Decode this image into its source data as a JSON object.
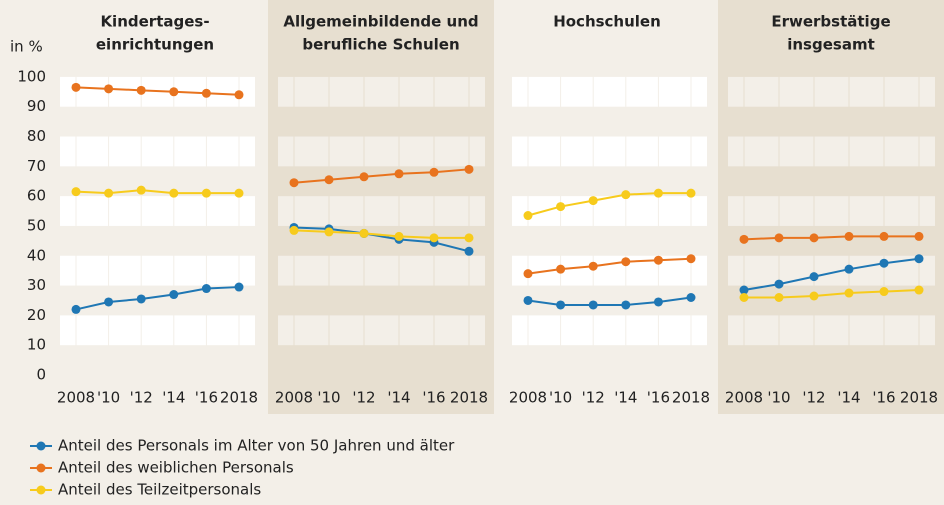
{
  "chart_data": [
    {
      "type": "line",
      "title": [
        "Kindertages-",
        "einrichtungen"
      ],
      "ylabel": "in %",
      "shaded": false,
      "categories": [
        "2008",
        "'10",
        "'12",
        "'14",
        "'16",
        "2018"
      ],
      "ylim": [
        0,
        105
      ],
      "yticks": [
        0,
        10,
        20,
        30,
        40,
        50,
        60,
        70,
        80,
        90,
        100
      ],
      "series": [
        {
          "name": "Anteil des Personals im Alter von 50 Jahren und älter",
          "color": "#1f77b4",
          "values": [
            22,
            24.5,
            25.5,
            27,
            29,
            29.5
          ]
        },
        {
          "name": "Anteil des weiblichen Personals",
          "color": "#e8731e",
          "values": [
            96.5,
            96,
            95.5,
            95,
            94.5,
            94
          ]
        },
        {
          "name": "Anteil des Teilzeitpersonals",
          "color": "#f7cb1c",
          "values": [
            61.5,
            61,
            62,
            61,
            61,
            61
          ]
        }
      ]
    },
    {
      "type": "line",
      "title": [
        "Allgemeinbildende und",
        "berufliche Schulen"
      ],
      "shaded": true,
      "categories": [
        "2008",
        "'10",
        "'12",
        "'14",
        "'16",
        "2018"
      ],
      "ylim": [
        0,
        105
      ],
      "yticks": [
        0,
        10,
        20,
        30,
        40,
        50,
        60,
        70,
        80,
        90,
        100
      ],
      "series": [
        {
          "color": "#1f77b4",
          "values": [
            49.5,
            49,
            47.5,
            45.5,
            44.5,
            41.5
          ]
        },
        {
          "color": "#e8731e",
          "values": [
            64.5,
            65.5,
            66.5,
            67.5,
            68,
            69
          ]
        },
        {
          "color": "#f7cb1c",
          "values": [
            48.5,
            48,
            47.5,
            46.5,
            46,
            46
          ]
        }
      ]
    },
    {
      "type": "line",
      "title": [
        "Hochschulen"
      ],
      "shaded": false,
      "categories": [
        "2008",
        "'10",
        "'12",
        "'14",
        "'16",
        "2018"
      ],
      "ylim": [
        0,
        105
      ],
      "yticks": [
        0,
        10,
        20,
        30,
        40,
        50,
        60,
        70,
        80,
        90,
        100
      ],
      "series": [
        {
          "color": "#1f77b4",
          "values": [
            25,
            23.5,
            23.5,
            23.5,
            24.5,
            26
          ]
        },
        {
          "color": "#e8731e",
          "values": [
            34,
            35.5,
            36.5,
            38,
            38.5,
            39
          ]
        },
        {
          "color": "#f7cb1c",
          "values": [
            53.5,
            56.5,
            58.5,
            60.5,
            61,
            61
          ]
        }
      ]
    },
    {
      "type": "line",
      "title": [
        "Erwerbstätige",
        "insgesamt"
      ],
      "shaded": true,
      "categories": [
        "2008",
        "'10",
        "'12",
        "'14",
        "'16",
        "2018"
      ],
      "ylim": [
        0,
        105
      ],
      "yticks": [
        0,
        10,
        20,
        30,
        40,
        50,
        60,
        70,
        80,
        90,
        100
      ],
      "series": [
        {
          "color": "#1f77b4",
          "values": [
            28.5,
            30.5,
            33,
            35.5,
            37.5,
            39
          ]
        },
        {
          "color": "#e8731e",
          "values": [
            45.5,
            46,
            46,
            46.5,
            46.5,
            46.5
          ]
        },
        {
          "color": "#f7cb1c",
          "values": [
            26,
            26,
            26.5,
            27.5,
            28,
            28.5
          ]
        }
      ]
    }
  ]
}
